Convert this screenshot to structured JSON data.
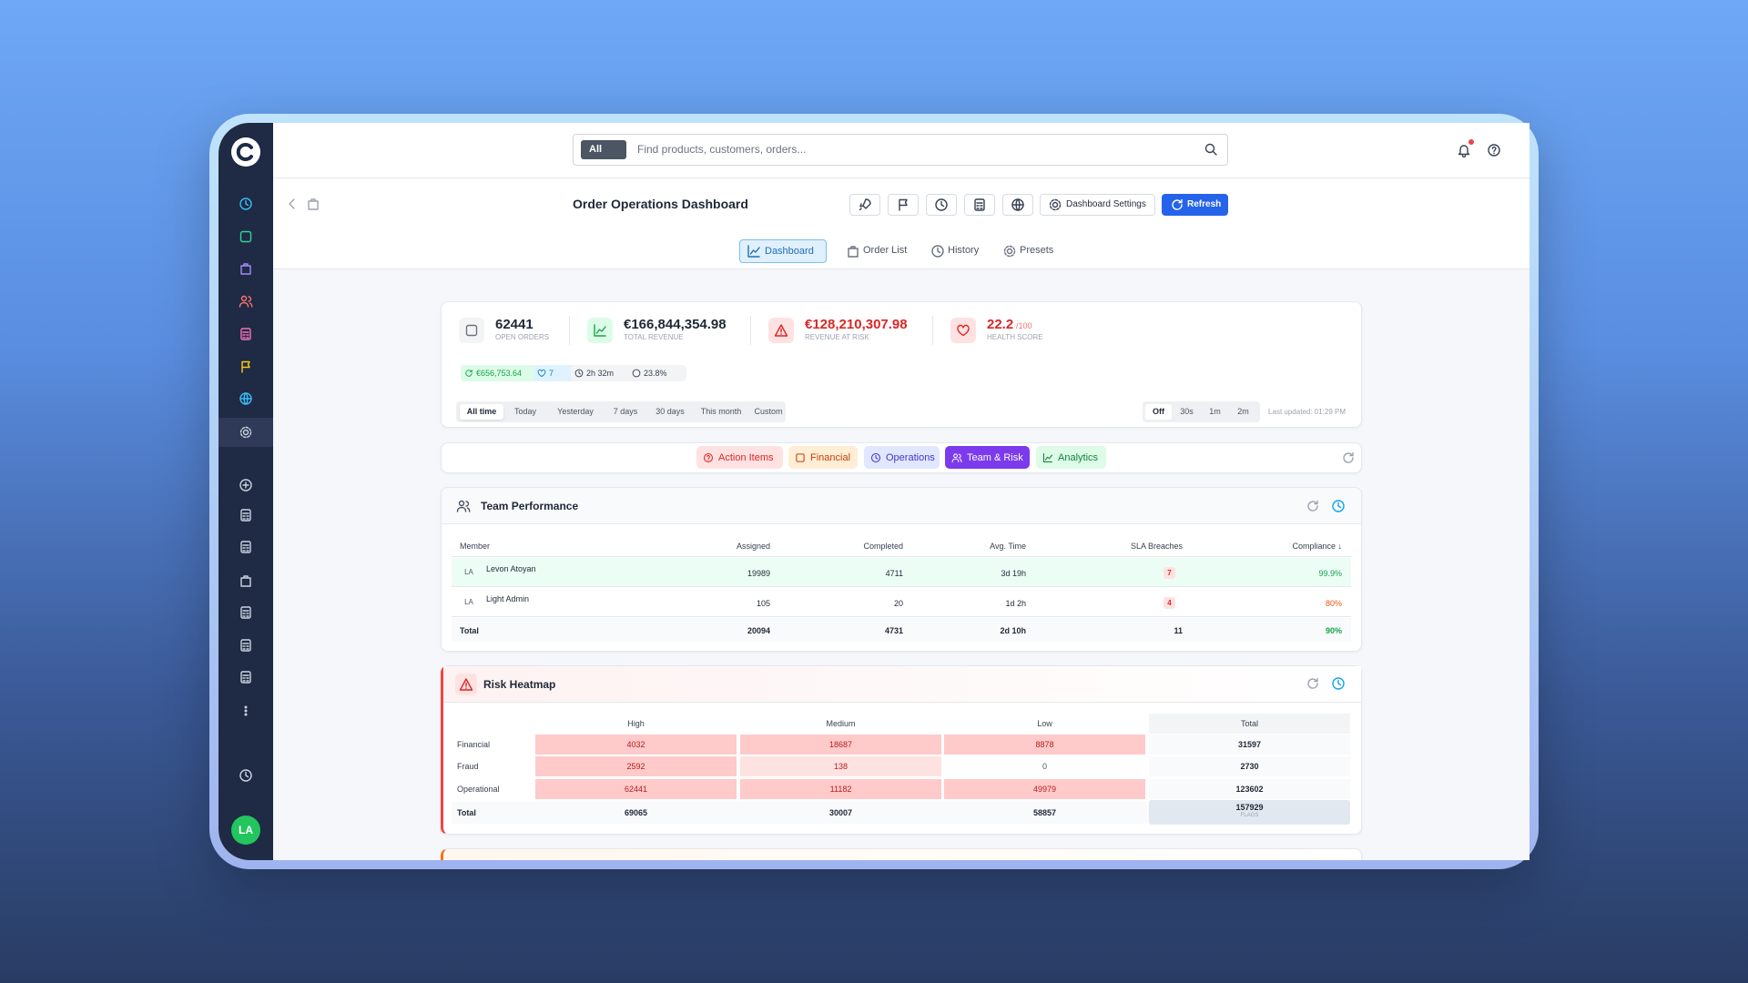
{
  "search": {
    "scope": "All",
    "placeholder": "Find products, customers, orders..."
  },
  "header": {
    "title": "Order Operations Dashboard",
    "settings": "Dashboard Settings",
    "refresh": "Refresh"
  },
  "tabs": [
    "Dashboard",
    "Order List",
    "History",
    "Presets"
  ],
  "kpis": [
    {
      "value": "62441",
      "label": "OPEN ORDERS"
    },
    {
      "value": "€166,844,354.98",
      "label": "TOTAL REVENUE"
    },
    {
      "value": "€128,210,307.98",
      "label": "REVENUE AT RISK"
    },
    {
      "value": "22.2",
      "suffix": "/100",
      "label": "HEALTH SCORE"
    }
  ],
  "badges": [
    "€656,753.64",
    "7",
    "2h 32m",
    "23.8%"
  ],
  "ranges": [
    "All time",
    "Today",
    "Yesterday",
    "7 days",
    "30 days",
    "This month",
    "Custom"
  ],
  "intervals": [
    "Off",
    "30s",
    "1m",
    "2m"
  ],
  "last_updated": "Last updated: 01:29 PM",
  "sections": [
    "Action Items",
    "Financial",
    "Operations",
    "Team & Risk",
    "Analytics"
  ],
  "team": {
    "title": "Team Performance",
    "columns": [
      "Member",
      "Assigned",
      "Completed",
      "Avg. Time",
      "SLA Breaches",
      "Compliance ↓"
    ],
    "rows": [
      [
        "LA",
        "Levon Atoyan",
        "19989",
        "4711",
        "3d 19h",
        "7",
        "99.9%"
      ],
      [
        "LA",
        "Light Admin",
        "105",
        "20",
        "1d 2h",
        "4",
        "80%"
      ]
    ],
    "total": [
      "Total",
      "20094",
      "4731",
      "2d 10h",
      "11",
      "90%"
    ]
  },
  "heatmap": {
    "title": "Risk Heatmap",
    "columns": [
      "High",
      "Medium",
      "Low",
      "Total"
    ],
    "rows": [
      [
        "Financial",
        4032,
        18687,
        8878,
        31597
      ],
      [
        "Fraud",
        2592,
        138,
        0,
        2730
      ],
      [
        "Operational",
        62441,
        11182,
        49979,
        123602
      ]
    ],
    "total": [
      "Total",
      69065,
      30007,
      58857,
      157929
    ],
    "total_sub": "FLAGS"
  },
  "user_initials": "LA"
}
